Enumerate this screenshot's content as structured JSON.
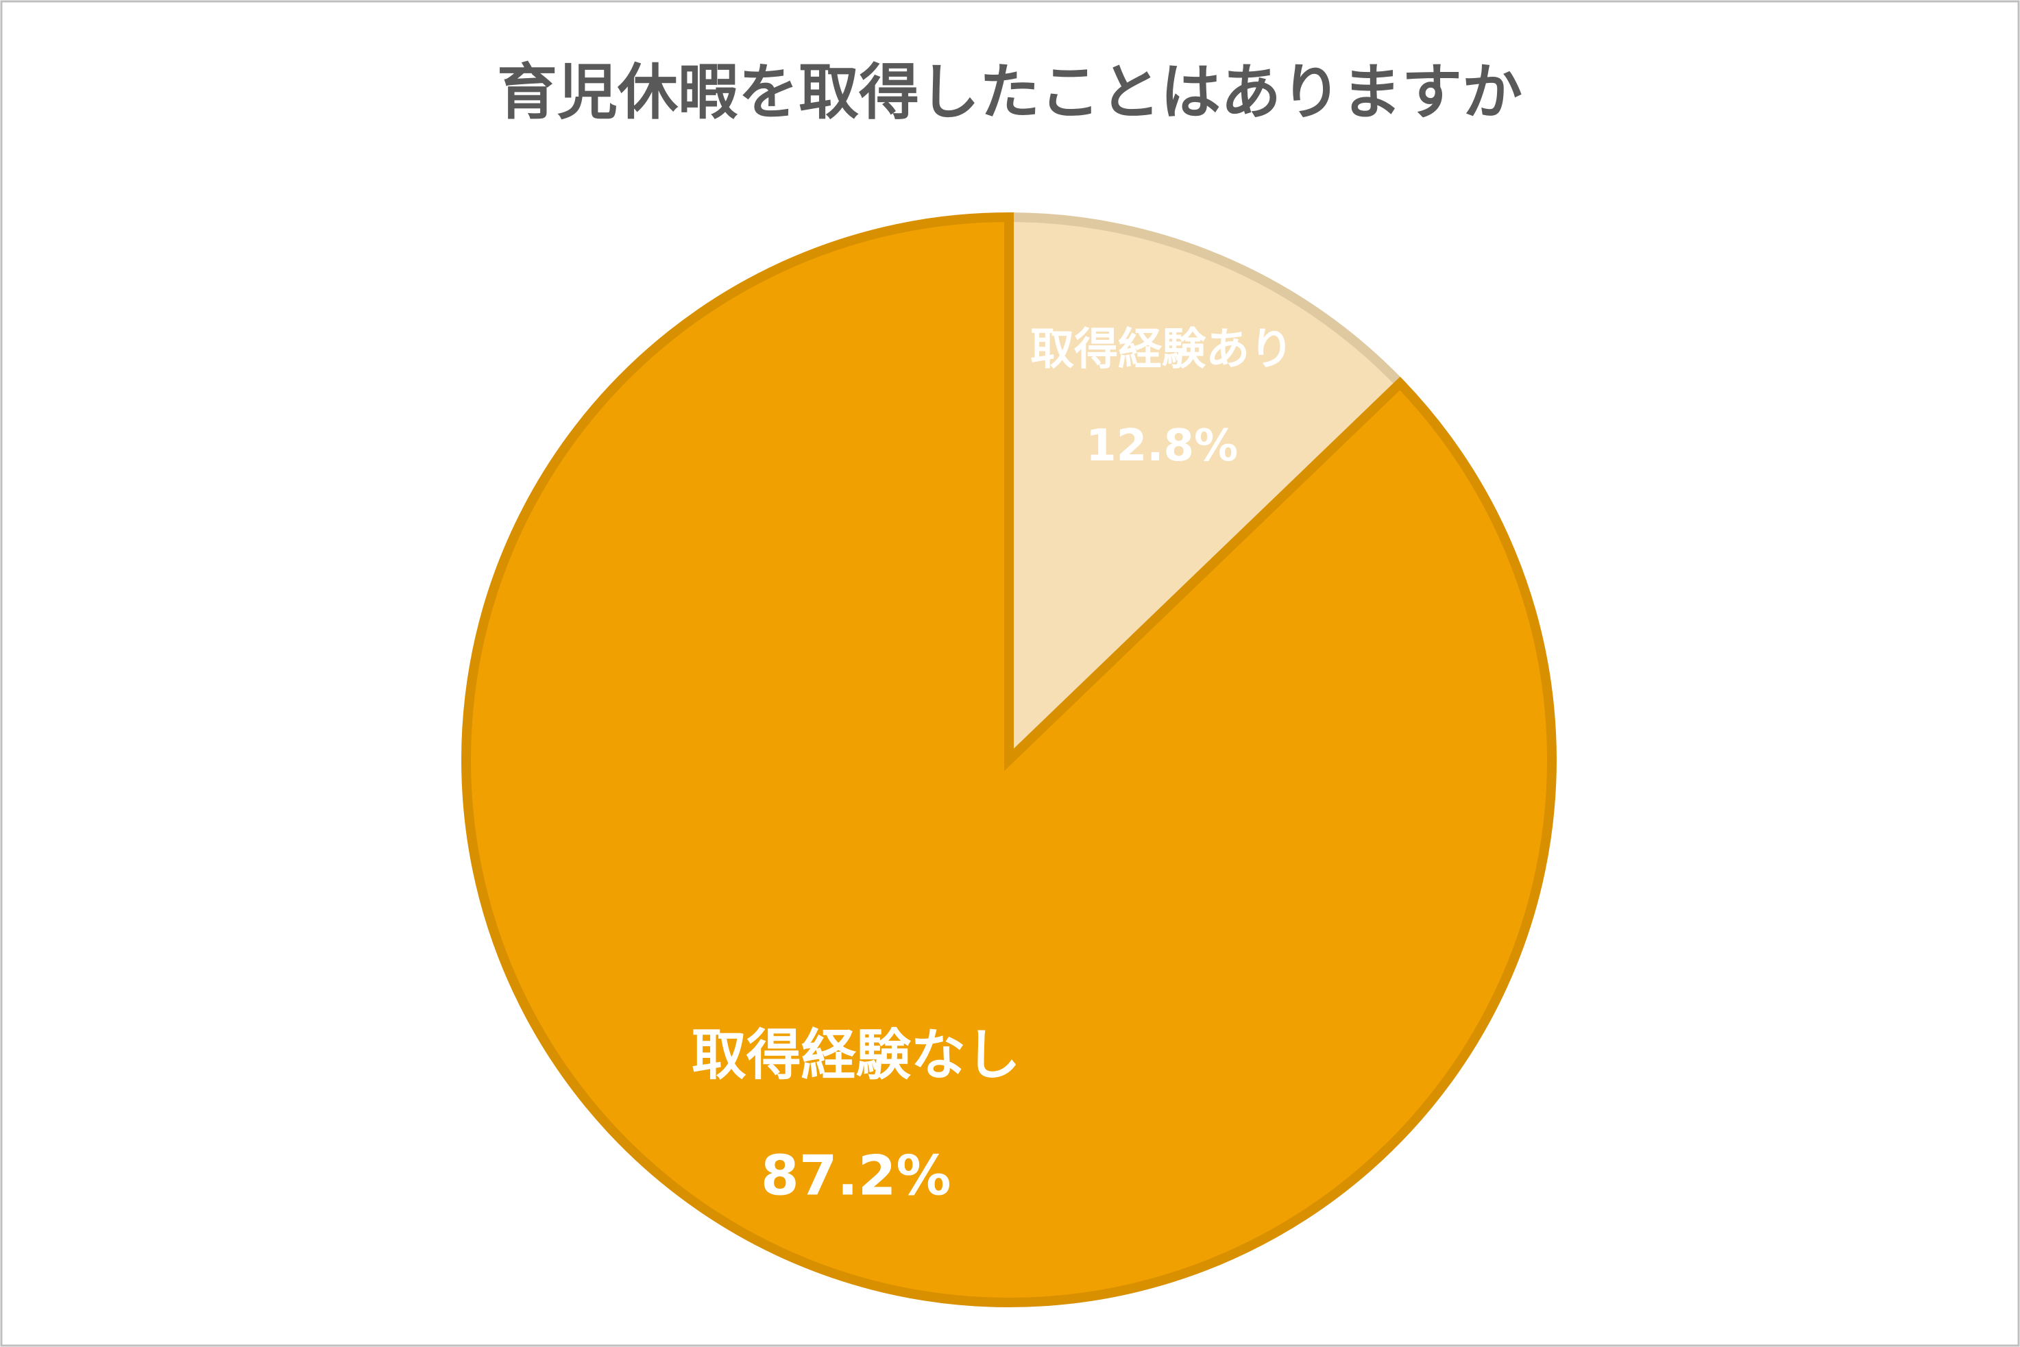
{
  "chart_data": {
    "type": "pie",
    "title": "育児休暇を取得したことはありますか",
    "categories": [
      "取得経験あり",
      "取得経験なし"
    ],
    "values": [
      12.8,
      87.2
    ],
    "value_labels": [
      "12.8%",
      "87.2%"
    ],
    "colors": [
      "#f7dfb5",
      "#f0a000"
    ]
  }
}
